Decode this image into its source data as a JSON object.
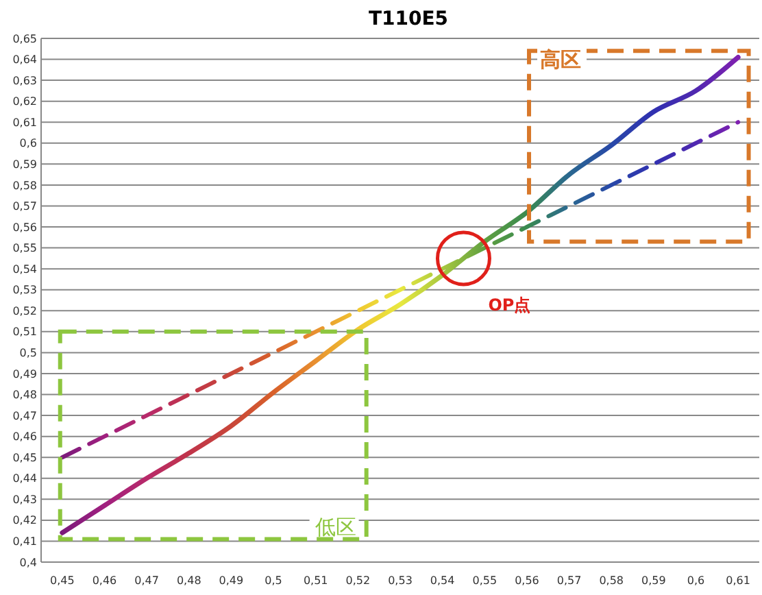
{
  "chart_data": {
    "type": "line",
    "title": "T110E5",
    "x": [
      0.45,
      0.46,
      0.47,
      0.48,
      0.49,
      0.5,
      0.51,
      0.52,
      0.53,
      0.54,
      0.55,
      0.56,
      0.57,
      0.58,
      0.59,
      0.6,
      0.61
    ],
    "xlim": [
      0.445,
      0.615
    ],
    "xticks": [
      {
        "value": 0.45,
        "label": "0,45"
      },
      {
        "value": 0.46,
        "label": "0,46"
      },
      {
        "value": 0.47,
        "label": "0,47"
      },
      {
        "value": 0.48,
        "label": "0,48"
      },
      {
        "value": 0.49,
        "label": "0,49"
      },
      {
        "value": 0.5,
        "label": "0,5"
      },
      {
        "value": 0.51,
        "label": "0,51"
      },
      {
        "value": 0.52,
        "label": "0,52"
      },
      {
        "value": 0.53,
        "label": "0,53"
      },
      {
        "value": 0.54,
        "label": "0,54"
      },
      {
        "value": 0.55,
        "label": "0,55"
      },
      {
        "value": 0.56,
        "label": "0,56"
      },
      {
        "value": 0.57,
        "label": "0,57"
      },
      {
        "value": 0.58,
        "label": "0,58"
      },
      {
        "value": 0.59,
        "label": "0,59"
      },
      {
        "value": 0.6,
        "label": "0,6"
      },
      {
        "value": 0.61,
        "label": "0,61"
      }
    ],
    "ylim": [
      0.4,
      0.65
    ],
    "yticks": [
      {
        "value": 0.4,
        "label": "0,4"
      },
      {
        "value": 0.41,
        "label": "0,41"
      },
      {
        "value": 0.42,
        "label": "0,42"
      },
      {
        "value": 0.43,
        "label": "0,43"
      },
      {
        "value": 0.44,
        "label": "0,44"
      },
      {
        "value": 0.45,
        "label": "0,45"
      },
      {
        "value": 0.46,
        "label": "0,46"
      },
      {
        "value": 0.47,
        "label": "0,47"
      },
      {
        "value": 0.48,
        "label": "0,48"
      },
      {
        "value": 0.49,
        "label": "0,49"
      },
      {
        "value": 0.5,
        "label": "0,5"
      },
      {
        "value": 0.51,
        "label": "0,51"
      },
      {
        "value": 0.52,
        "label": "0,52"
      },
      {
        "value": 0.53,
        "label": "0,53"
      },
      {
        "value": 0.54,
        "label": "0,54"
      },
      {
        "value": 0.55,
        "label": "0,55"
      },
      {
        "value": 0.56,
        "label": "0,56"
      },
      {
        "value": 0.57,
        "label": "0,57"
      },
      {
        "value": 0.58,
        "label": "0,58"
      },
      {
        "value": 0.59,
        "label": "0,59"
      },
      {
        "value": 0.6,
        "label": "0,6"
      },
      {
        "value": 0.61,
        "label": "0,61"
      },
      {
        "value": 0.62,
        "label": "0,62"
      },
      {
        "value": 0.63,
        "label": "0,63"
      },
      {
        "value": 0.64,
        "label": "0,64"
      },
      {
        "value": 0.65,
        "label": "0,65"
      }
    ],
    "grid": "y",
    "series": [
      {
        "line_style": "solid",
        "colors": [
          "#7b1a7b",
          "#a0207f",
          "#b82a6a",
          "#c0344a",
          "#c8463a",
          "#d8602a",
          "#e89030",
          "#f0c830",
          "#e8e840",
          "#a8c840",
          "#60a040",
          "#3a8a50",
          "#2a6890",
          "#2848a8",
          "#3030b0",
          "#5028b0",
          "#8020b0"
        ],
        "values": [
          0.414,
          0.427,
          0.44,
          0.452,
          0.465,
          0.481,
          0.496,
          0.511,
          0.523,
          0.537,
          0.553,
          0.567,
          0.585,
          0.599,
          0.615,
          0.625,
          0.641
        ]
      },
      {
        "line_style": "dashed",
        "colors": [
          "#7b1a7b",
          "#a0207f",
          "#b82a6a",
          "#c0344a",
          "#c8463a",
          "#d8602a",
          "#e89030",
          "#f0c830",
          "#e8e840",
          "#a8c840",
          "#60a040",
          "#3a8a50",
          "#2a6890",
          "#2848a8",
          "#3030b0",
          "#5028b0",
          "#8020b0"
        ],
        "values": [
          0.45,
          0.46,
          0.47,
          0.48,
          0.49,
          0.5,
          0.51,
          0.52,
          0.53,
          0.54,
          0.55,
          0.56,
          0.57,
          0.58,
          0.59,
          0.6,
          0.61
        ]
      }
    ],
    "annotations": [
      "低区",
      "高区",
      {
        "text": "OP点",
        "x": 0.545,
        "y": 0.545
      }
    ]
  }
}
